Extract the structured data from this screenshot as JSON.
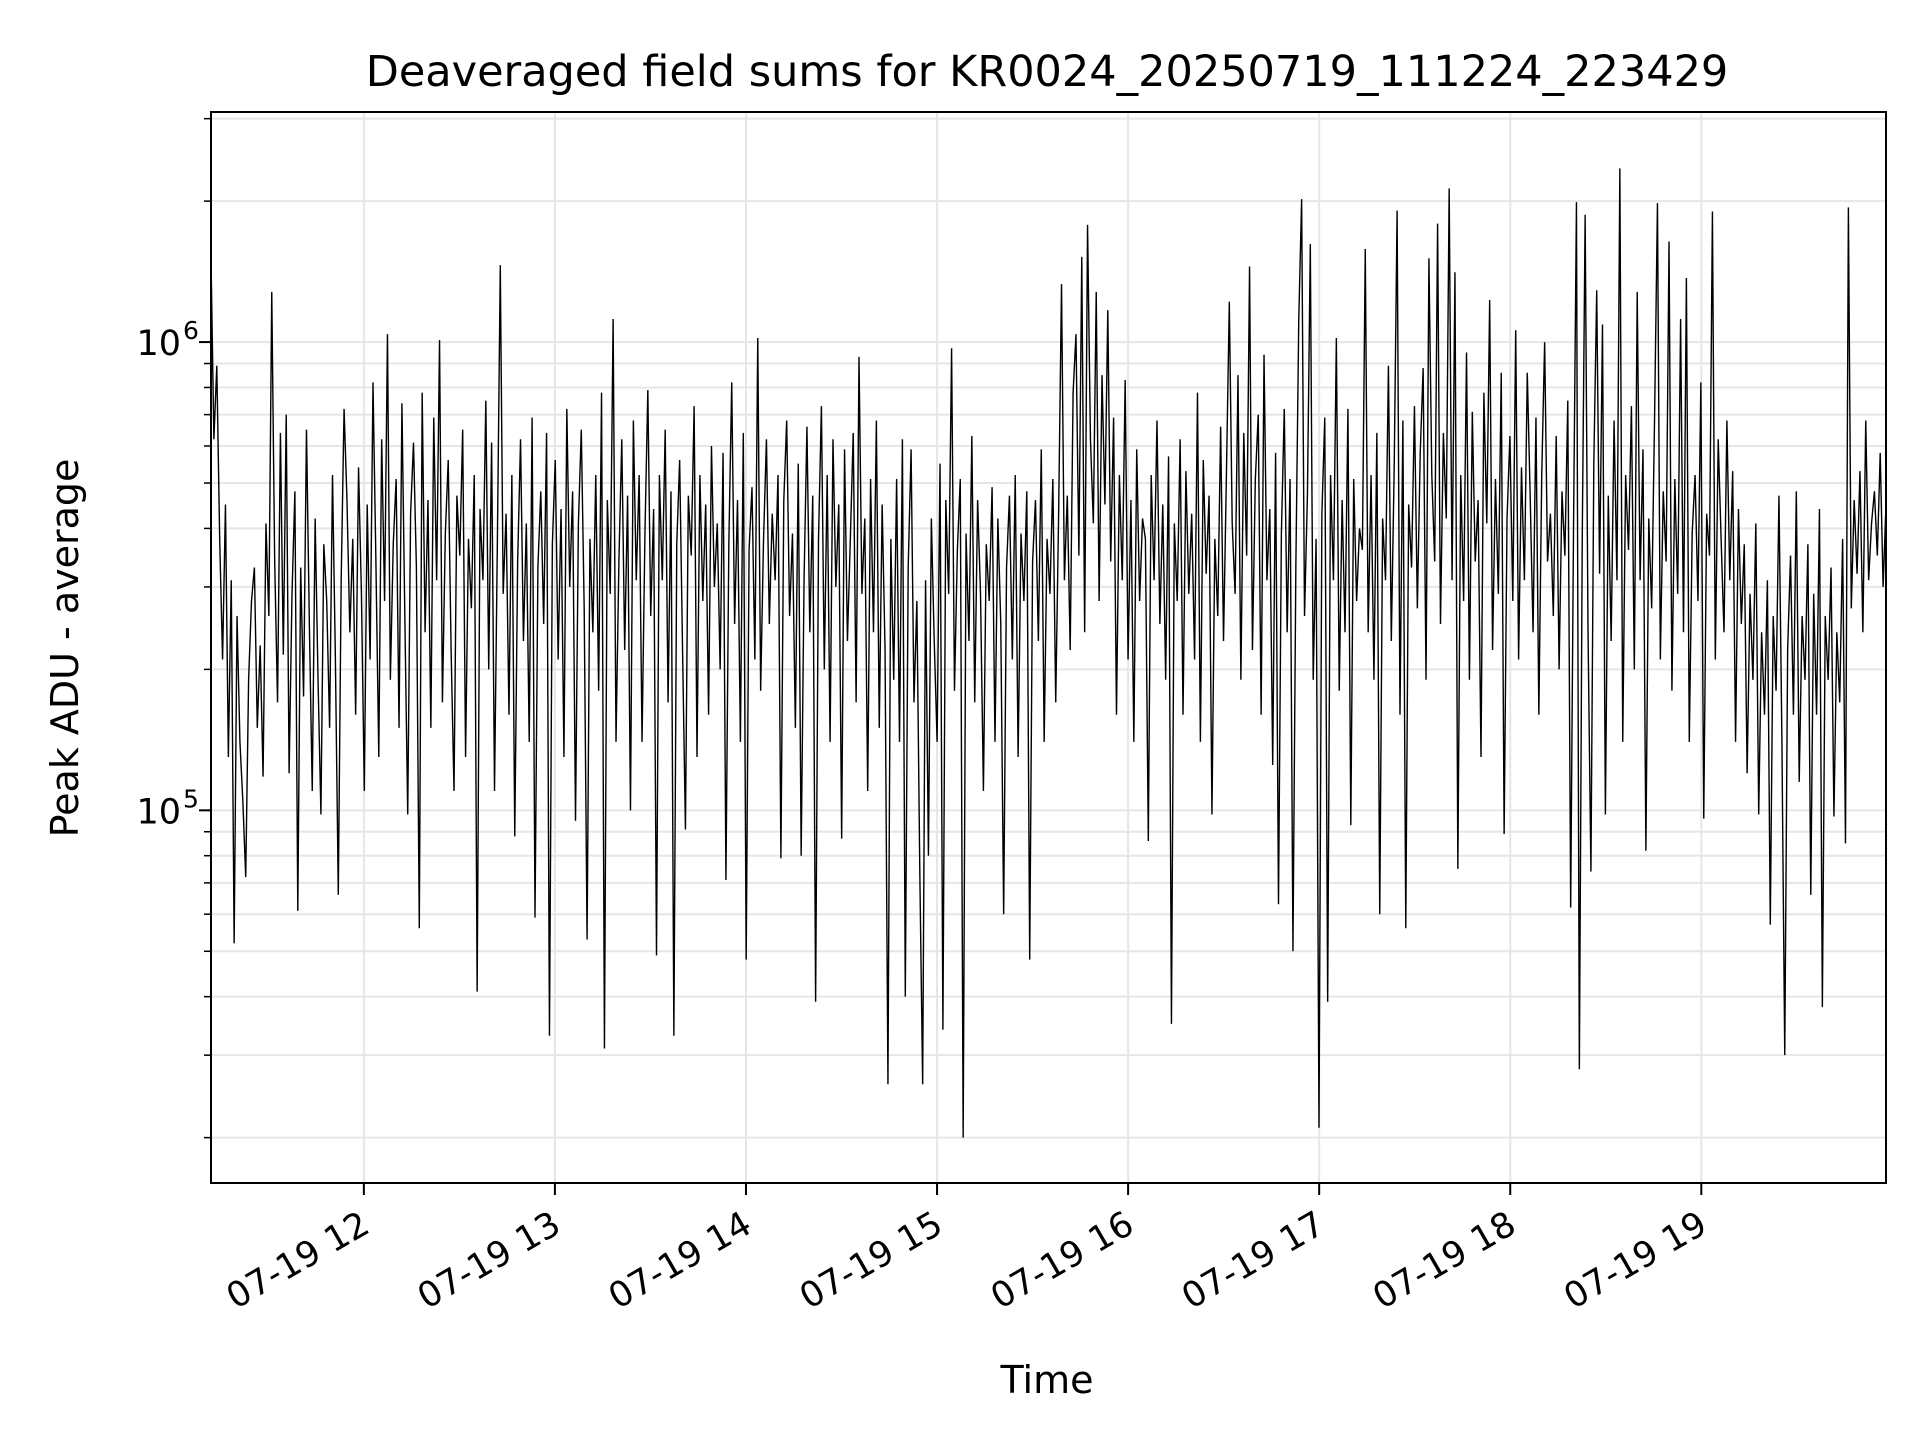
{
  "chart_data": {
    "type": "line",
    "title": "Deaveraged field sums for KR0024_20250719_111224_223429",
    "xlabel": "Time",
    "ylabel": "Peak ADU - average",
    "yscale": "log",
    "ylim": [
      16000,
      3100000
    ],
    "xlim": [
      "2025-07-19 11:12",
      "2025-07-19 19:58"
    ],
    "grid": true,
    "line_color": "#000000",
    "grid_color": "#e6e6e6",
    "x_ticks": [
      {
        "value": "2025-07-19 12:00",
        "label": "07-19 12"
      },
      {
        "value": "2025-07-19 13:00",
        "label": "07-19 13"
      },
      {
        "value": "2025-07-19 14:00",
        "label": "07-19 14"
      },
      {
        "value": "2025-07-19 15:00",
        "label": "07-19 15"
      },
      {
        "value": "2025-07-19 16:00",
        "label": "07-19 16"
      },
      {
        "value": "2025-07-19 17:00",
        "label": "07-19 17"
      },
      {
        "value": "2025-07-19 18:00",
        "label": "07-19 18"
      },
      {
        "value": "2025-07-19 19:00",
        "label": "07-19 19"
      }
    ],
    "y_ticks": [
      {
        "value": 100000,
        "base": "10",
        "exp": "5"
      },
      {
        "value": 1000000,
        "base": "10",
        "exp": "6"
      }
    ],
    "series": [
      {
        "x_start": "2025-07-19 11:12",
        "x_end": "2025-07-19 19:58",
        "y": [
          1520000,
          620000,
          890000,
          380000,
          210000,
          450000,
          130000,
          310000,
          52000,
          260000,
          140000,
          105000,
          72000,
          190000,
          280000,
          330000,
          150000,
          225000,
          118000,
          410000,
          260000,
          1280000,
          345000,
          170000,
          640000,
          215000,
          700000,
          120000,
          290000,
          480000,
          61000,
          330000,
          175000,
          650000,
          250000,
          110000,
          420000,
          190000,
          98000,
          370000,
          280000,
          150000,
          520000,
          210000,
          66000,
          310000,
          720000,
          460000,
          240000,
          380000,
          160000,
          540000,
          290000,
          110000,
          450000,
          210000,
          820000,
          340000,
          130000,
          620000,
          280000,
          1040000,
          190000,
          370000,
          510000,
          150000,
          740000,
          260000,
          98000,
          430000,
          610000,
          330000,
          56000,
          780000,
          240000,
          460000,
          150000,
          690000,
          310000,
          1010000,
          170000,
          390000,
          560000,
          220000,
          110000,
          470000,
          350000,
          650000,
          130000,
          380000,
          270000,
          520000,
          41000,
          440000,
          310000,
          750000,
          200000,
          610000,
          110000,
          380000,
          1460000,
          290000,
          430000,
          160000,
          520000,
          88000,
          340000,
          620000,
          230000,
          410000,
          140000,
          690000,
          59000,
          330000,
          480000,
          250000,
          640000,
          33000,
          370000,
          560000,
          210000,
          440000,
          130000,
          720000,
          300000,
          480000,
          95000,
          410000,
          650000,
          270000,
          53000,
          380000,
          240000,
          520000,
          180000,
          780000,
          31000,
          460000,
          290000,
          1120000,
          140000,
          340000,
          620000,
          220000,
          470000,
          100000,
          680000,
          310000,
          520000,
          140000,
          390000,
          790000,
          260000,
          440000,
          49000,
          520000,
          310000,
          650000,
          170000,
          480000,
          33000,
          370000,
          560000,
          220000,
          91000,
          470000,
          350000,
          730000,
          130000,
          520000,
          280000,
          450000,
          160000,
          600000,
          300000,
          410000,
          200000,
          580000,
          71000,
          370000,
          820000,
          250000,
          460000,
          140000,
          640000,
          48000,
          360000,
          490000,
          210000,
          1020000,
          180000,
          380000,
          620000,
          250000,
          430000,
          310000,
          520000,
          79000,
          460000,
          680000,
          260000,
          390000,
          150000,
          550000,
          80000,
          310000,
          660000,
          240000,
          470000,
          39000,
          380000,
          730000,
          200000,
          520000,
          140000,
          620000,
          300000,
          450000,
          87000,
          590000,
          230000,
          380000,
          640000,
          170000,
          930000,
          290000,
          420000,
          110000,
          510000,
          240000,
          680000,
          150000,
          450000,
          220000,
          26000,
          380000,
          190000,
          510000,
          140000,
          620000,
          40000,
          330000,
          590000,
          170000,
          280000,
          75000,
          26000,
          310000,
          80000,
          420000,
          230000,
          140000,
          550000,
          34000,
          460000,
          290000,
          970000,
          180000,
          360000,
          510000,
          20000,
          390000,
          230000,
          630000,
          170000,
          460000,
          290000,
          110000,
          370000,
          280000,
          490000,
          140000,
          420000,
          250000,
          60000,
          330000,
          470000,
          210000,
          520000,
          130000,
          390000,
          280000,
          480000,
          48000,
          340000,
          460000,
          230000,
          590000,
          140000,
          380000,
          290000,
          510000,
          170000,
          430000,
          1330000,
          310000,
          470000,
          220000,
          780000,
          1040000,
          350000,
          1520000,
          240000,
          1780000,
          620000,
          410000,
          1280000,
          280000,
          850000,
          450000,
          1170000,
          340000,
          690000,
          160000,
          520000,
          310000,
          830000,
          210000,
          460000,
          140000,
          590000,
          280000,
          420000,
          380000,
          86000,
          520000,
          310000,
          680000,
          250000,
          450000,
          190000,
          570000,
          35000,
          410000,
          280000,
          620000,
          160000,
          530000,
          290000,
          430000,
          210000,
          780000,
          140000,
          560000,
          320000,
          470000,
          98000,
          380000,
          260000,
          660000,
          230000,
          520000,
          1220000,
          410000,
          290000,
          850000,
          190000,
          640000,
          350000,
          1450000,
          220000,
          510000,
          700000,
          160000,
          940000,
          310000,
          440000,
          125000,
          580000,
          63000,
          390000,
          720000,
          240000,
          510000,
          50000,
          330000,
          1110000,
          2020000,
          260000,
          470000,
          1620000,
          190000,
          380000,
          21000,
          430000,
          690000,
          39000,
          520000,
          310000,
          1020000,
          180000,
          460000,
          240000,
          720000,
          93000,
          510000,
          280000,
          400000,
          360000,
          1580000,
          240000,
          520000,
          190000,
          640000,
          60000,
          420000,
          310000,
          890000,
          230000,
          540000,
          1910000,
          160000,
          680000,
          56000,
          450000,
          330000,
          730000,
          270000,
          580000,
          880000,
          190000,
          1510000,
          520000,
          340000,
          1790000,
          250000,
          640000,
          420000,
          2130000,
          310000,
          1410000,
          75000,
          520000,
          280000,
          950000,
          190000,
          710000,
          340000,
          460000,
          130000,
          780000,
          410000,
          1230000,
          220000,
          510000,
          290000,
          860000,
          89000,
          420000,
          630000,
          280000,
          1060000,
          210000,
          540000,
          310000,
          860000,
          470000,
          240000,
          690000,
          160000,
          520000,
          1000000,
          340000,
          430000,
          260000,
          630000,
          200000,
          480000,
          350000,
          750000,
          62000,
          410000,
          1990000,
          28000,
          380000,
          1870000,
          240000,
          74000,
          550000,
          1290000,
          320000,
          1090000,
          98000,
          470000,
          230000,
          680000,
          310000,
          2350000,
          140000,
          520000,
          360000,
          730000,
          200000,
          1280000,
          310000,
          590000,
          82000,
          420000,
          270000,
          690000,
          1980000,
          210000,
          480000,
          340000,
          1640000,
          180000,
          510000,
          290000,
          1120000,
          240000,
          1370000,
          140000,
          390000,
          520000,
          280000,
          820000,
          96000,
          430000,
          350000,
          1900000,
          210000,
          620000,
          380000,
          240000,
          680000,
          310000,
          530000,
          140000,
          440000,
          250000,
          370000,
          120000,
          290000,
          190000,
          410000,
          98000,
          240000,
          160000,
          310000,
          57000,
          260000,
          180000,
          470000,
          145000,
          30000,
          220000,
          350000,
          160000,
          480000,
          115000,
          260000,
          190000,
          370000,
          66000,
          290000,
          160000,
          440000,
          38000,
          260000,
          190000,
          330000,
          97000,
          240000,
          170000,
          380000,
          85000,
          1940000,
          270000,
          460000,
          320000,
          530000,
          240000,
          680000,
          310000,
          410000,
          480000,
          350000,
          580000,
          300000,
          450000
        ]
      }
    ]
  }
}
